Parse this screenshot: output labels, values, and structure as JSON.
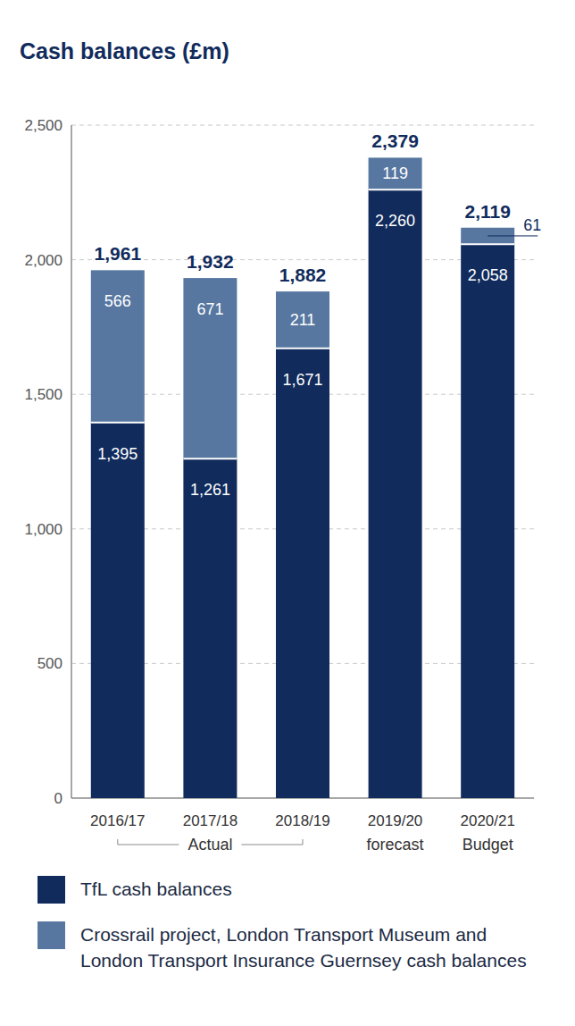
{
  "chart_data": {
    "type": "bar",
    "title": "Cash balances (£m)",
    "categories": [
      "2016/17",
      "2017/18",
      "2018/19",
      "2019/20",
      "2020/21"
    ],
    "category_groups": [
      {
        "label": "Actual",
        "from": 0,
        "to": 2
      },
      {
        "label": "forecast",
        "from": 3,
        "to": 3
      },
      {
        "label": "Budget",
        "from": 4,
        "to": 4
      }
    ],
    "series": [
      {
        "name": "TfL cash balances",
        "color": "#102b5c",
        "values": [
          1395,
          1261,
          1671,
          2260,
          2058
        ],
        "value_labels": [
          "1,395",
          "1,261",
          "1,671",
          "2,260",
          "2,058"
        ]
      },
      {
        "name": "Crossrail project, London Transport Museum and London Transport Insurance Guernsey cash balances",
        "color": "#5777a1",
        "values": [
          566,
          671,
          211,
          119,
          61
        ],
        "value_labels": [
          "566",
          "671",
          "211",
          "119",
          "61"
        ]
      }
    ],
    "totals": [
      1961,
      1932,
      1882,
      2379,
      2119
    ],
    "total_labels": [
      "1,961",
      "1,932",
      "1,882",
      "2,379",
      "2,119"
    ],
    "ylim": [
      0,
      2500
    ],
    "yticks": [
      0,
      500,
      {
        "value": 1000,
        "label": "1,000"
      },
      {
        "value": 1500,
        "label": "1,500"
      },
      {
        "value": 2000,
        "label": "2,000"
      },
      {
        "value": 2500,
        "label": "2,500"
      }
    ],
    "grid": true,
    "stacked": true,
    "data_labels": true,
    "legend": "bottom"
  }
}
